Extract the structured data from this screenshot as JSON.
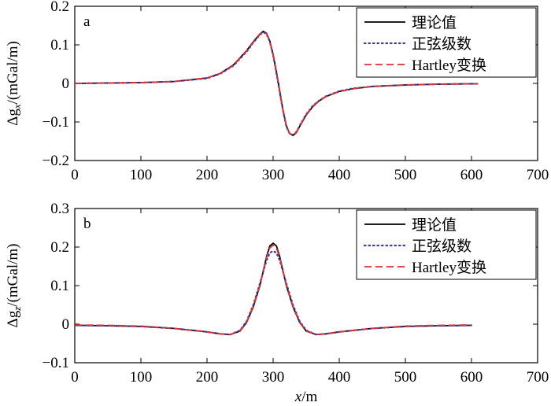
{
  "chart_data": [
    {
      "type": "line",
      "panel_label": "a",
      "ylabel": "Δg",
      "ylabel_sub": "x",
      "ylabel_unit": "/(mGal/m)",
      "xlim": [
        0,
        700
      ],
      "ylim": [
        -0.2,
        0.2
      ],
      "xticks": [
        0,
        100,
        200,
        300,
        400,
        500,
        600,
        700
      ],
      "yticks": [
        -0.2,
        -0.1,
        0,
        0.1,
        0.2
      ],
      "ytick_labels": [
        "−0.2",
        "−0.1",
        "0",
        "0.1",
        "0.2"
      ],
      "grid": false,
      "legend_position": "top-right",
      "x": [
        0,
        50,
        100,
        150,
        200,
        220,
        240,
        260,
        270,
        280,
        285,
        290,
        295,
        300,
        305,
        310,
        315,
        320,
        325,
        330,
        335,
        340,
        350,
        360,
        370,
        380,
        400,
        420,
        450,
        500,
        550,
        600,
        610
      ],
      "series": [
        {
          "name": "理论值",
          "color": "#000000",
          "dash": "solid",
          "values": [
            0,
            0.001,
            0.002,
            0.005,
            0.014,
            0.026,
            0.048,
            0.085,
            0.108,
            0.128,
            0.135,
            0.13,
            0.11,
            0.075,
            0.03,
            -0.02,
            -0.07,
            -0.11,
            -0.13,
            -0.135,
            -0.128,
            -0.112,
            -0.082,
            -0.06,
            -0.045,
            -0.034,
            -0.021,
            -0.014,
            -0.008,
            -0.004,
            -0.002,
            -0.001,
            -0.001
          ]
        },
        {
          "name": "正弦级数",
          "color": "#3a3aa8",
          "dash": "dotted",
          "values": [
            0,
            0.001,
            0.002,
            0.005,
            0.013,
            0.025,
            0.046,
            0.082,
            0.106,
            0.126,
            0.133,
            0.128,
            0.108,
            0.072,
            0.026,
            -0.024,
            -0.072,
            -0.112,
            -0.13,
            -0.133,
            -0.126,
            -0.11,
            -0.08,
            -0.058,
            -0.044,
            -0.033,
            -0.02,
            -0.013,
            -0.008,
            -0.004,
            -0.002,
            -0.001,
            -0.001
          ]
        },
        {
          "name": "Hartley变换",
          "color": "#e03030",
          "dash": "dashed",
          "values": [
            0,
            0.001,
            0.002,
            0.005,
            0.014,
            0.026,
            0.047,
            0.084,
            0.107,
            0.127,
            0.134,
            0.129,
            0.109,
            0.074,
            0.028,
            -0.022,
            -0.071,
            -0.111,
            -0.13,
            -0.134,
            -0.127,
            -0.111,
            -0.081,
            -0.059,
            -0.044,
            -0.034,
            -0.021,
            -0.014,
            -0.008,
            -0.004,
            -0.002,
            -0.001,
            -0.001
          ]
        }
      ]
    },
    {
      "type": "line",
      "panel_label": "b",
      "ylabel": "Δg",
      "ylabel_sub": "z",
      "ylabel_unit": "/(mGal/m)",
      "xlabel": "x",
      "xlabel_unit": "/m",
      "xlim": [
        0,
        700
      ],
      "ylim": [
        -0.1,
        0.3
      ],
      "xticks": [
        0,
        100,
        200,
        300,
        400,
        500,
        600,
        700
      ],
      "yticks": [
        -0.1,
        0,
        0.1,
        0.2,
        0.3
      ],
      "ytick_labels": [
        "−0.1",
        "0",
        "0.1",
        "0.2",
        "0.3"
      ],
      "grid": false,
      "legend_position": "top-right",
      "x": [
        0,
        50,
        100,
        150,
        200,
        220,
        235,
        250,
        260,
        270,
        280,
        290,
        295,
        300,
        305,
        310,
        320,
        330,
        340,
        350,
        365,
        380,
        400,
        450,
        500,
        550,
        600
      ],
      "series": [
        {
          "name": "理论值",
          "color": "#000000",
          "dash": "solid",
          "values": [
            -0.003,
            -0.004,
            -0.006,
            -0.011,
            -0.02,
            -0.025,
            -0.027,
            -0.018,
            0.005,
            0.045,
            0.1,
            0.175,
            0.203,
            0.21,
            0.203,
            0.175,
            0.1,
            0.045,
            0.005,
            -0.018,
            -0.027,
            -0.025,
            -0.02,
            -0.011,
            -0.006,
            -0.004,
            -0.003
          ]
        },
        {
          "name": "正弦级数",
          "color": "#3a3aa8",
          "dash": "dotted",
          "values": [
            -0.003,
            -0.004,
            -0.006,
            -0.011,
            -0.02,
            -0.025,
            -0.027,
            -0.016,
            0.008,
            0.05,
            0.106,
            0.165,
            0.185,
            0.19,
            0.185,
            0.165,
            0.106,
            0.05,
            0.008,
            -0.016,
            -0.027,
            -0.025,
            -0.02,
            -0.011,
            -0.006,
            -0.004,
            -0.003
          ]
        },
        {
          "name": "Hartley变换",
          "color": "#e03030",
          "dash": "dashed",
          "values": [
            -0.002,
            -0.003,
            -0.005,
            -0.011,
            -0.02,
            -0.025,
            -0.027,
            -0.017,
            0.006,
            0.047,
            0.102,
            0.172,
            0.198,
            0.205,
            0.198,
            0.172,
            0.102,
            0.047,
            0.006,
            -0.017,
            -0.027,
            -0.025,
            -0.02,
            -0.011,
            -0.005,
            -0.003,
            -0.002
          ]
        }
      ]
    }
  ]
}
